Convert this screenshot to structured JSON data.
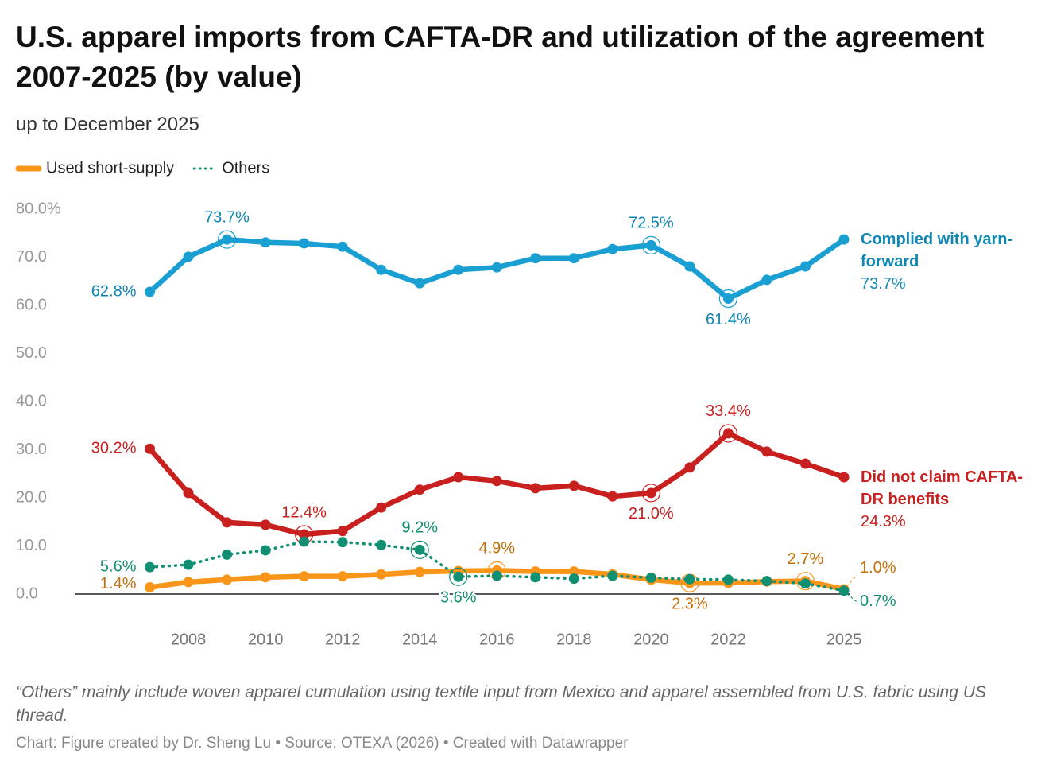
{
  "chart_data": {
    "type": "line",
    "title": "U.S. apparel imports from CAFTA-DR and utilization of the agreement 2007-2025 (by value)",
    "subtitle": "up to December 2025",
    "note": "“Others” mainly include woven apparel cumulation using textile input from Mexico and apparel assembled from U.S. fabric using US thread.",
    "source": "Chart: Figure created by Dr. Sheng Lu • Source: OTEXA (2026) • Created with Datawrapper",
    "x": [
      2007,
      2008,
      2009,
      2010,
      2011,
      2012,
      2013,
      2014,
      2015,
      2016,
      2017,
      2018,
      2019,
      2020,
      2021,
      2022,
      2023,
      2024,
      2025
    ],
    "xlim": [
      2007,
      2025
    ],
    "xticks": [
      2008,
      2010,
      2012,
      2014,
      2016,
      2018,
      2020,
      2022,
      2025
    ],
    "ylim": [
      0,
      80
    ],
    "yticks": [
      {
        "value": 80,
        "label": "80.0%"
      },
      {
        "value": 70,
        "label": "70.0"
      },
      {
        "value": 60,
        "label": "60.0"
      },
      {
        "value": 50,
        "label": "50.0"
      },
      {
        "value": 40,
        "label": "40.0"
      },
      {
        "value": 30,
        "label": "30.0"
      },
      {
        "value": 20,
        "label": "20.0"
      },
      {
        "value": 10,
        "label": "10.0"
      },
      {
        "value": 0,
        "label": "0.0"
      }
    ],
    "grid": false,
    "series": [
      {
        "name": "Complied with yarn-forward",
        "color": "#1a9fd3",
        "label_color": "#0f87b5",
        "line_style": "solid",
        "direct_label": true,
        "values": [
          62.8,
          70.1,
          73.7,
          73.1,
          72.9,
          72.2,
          67.4,
          64.6,
          67.4,
          67.9,
          69.8,
          69.8,
          71.7,
          72.5,
          68.1,
          61.4,
          65.3,
          68.1,
          73.7
        ],
        "value_labels": [
          "62.8%",
          null,
          "73.7%",
          null,
          null,
          null,
          null,
          null,
          null,
          null,
          null,
          null,
          null,
          "72.5%",
          null,
          "61.4%",
          null,
          null,
          "73.7%"
        ]
      },
      {
        "name": "Did not claim CAFTA-DR benefits",
        "color": "#c8201f",
        "label_color": "#c8201f",
        "line_style": "solid",
        "direct_label": true,
        "values": [
          30.2,
          21.0,
          14.9,
          14.4,
          12.4,
          13.1,
          18.0,
          21.7,
          24.3,
          23.5,
          22.0,
          22.5,
          20.3,
          21.0,
          26.3,
          33.4,
          29.6,
          27.1,
          24.3
        ],
        "value_labels": [
          "30.2%",
          null,
          null,
          null,
          "12.4%",
          null,
          null,
          null,
          null,
          null,
          null,
          null,
          null,
          "21.0%",
          null,
          "33.4%",
          null,
          null,
          "24.3%"
        ]
      },
      {
        "name": "Used short-supply",
        "color": "#f9961a",
        "label_color": "#c4700a",
        "line_style": "solid",
        "direct_label": false,
        "values": [
          1.4,
          2.5,
          3.0,
          3.5,
          3.7,
          3.7,
          4.1,
          4.6,
          4.8,
          4.9,
          4.7,
          4.7,
          4.1,
          3.0,
          2.3,
          2.3,
          2.6,
          2.7,
          1.0
        ],
        "value_labels": [
          "1.4%",
          null,
          null,
          null,
          null,
          null,
          null,
          null,
          null,
          "4.9%",
          null,
          null,
          null,
          null,
          "2.3%",
          null,
          null,
          "2.7%",
          "1.0%"
        ]
      },
      {
        "name": "Others",
        "color": "#108f72",
        "label_color": "#108f72",
        "line_style": "dotted",
        "direct_label": false,
        "values": [
          5.6,
          6.1,
          8.2,
          9.1,
          10.9,
          10.8,
          10.2,
          9.2,
          3.6,
          3.8,
          3.5,
          3.2,
          3.8,
          3.4,
          3.1,
          3.0,
          2.7,
          2.2,
          0.7
        ],
        "value_labels": [
          "5.6%",
          null,
          null,
          null,
          null,
          null,
          null,
          "9.2%",
          "3.6%",
          null,
          null,
          null,
          null,
          null,
          null,
          null,
          null,
          null,
          "0.7%"
        ]
      }
    ]
  }
}
